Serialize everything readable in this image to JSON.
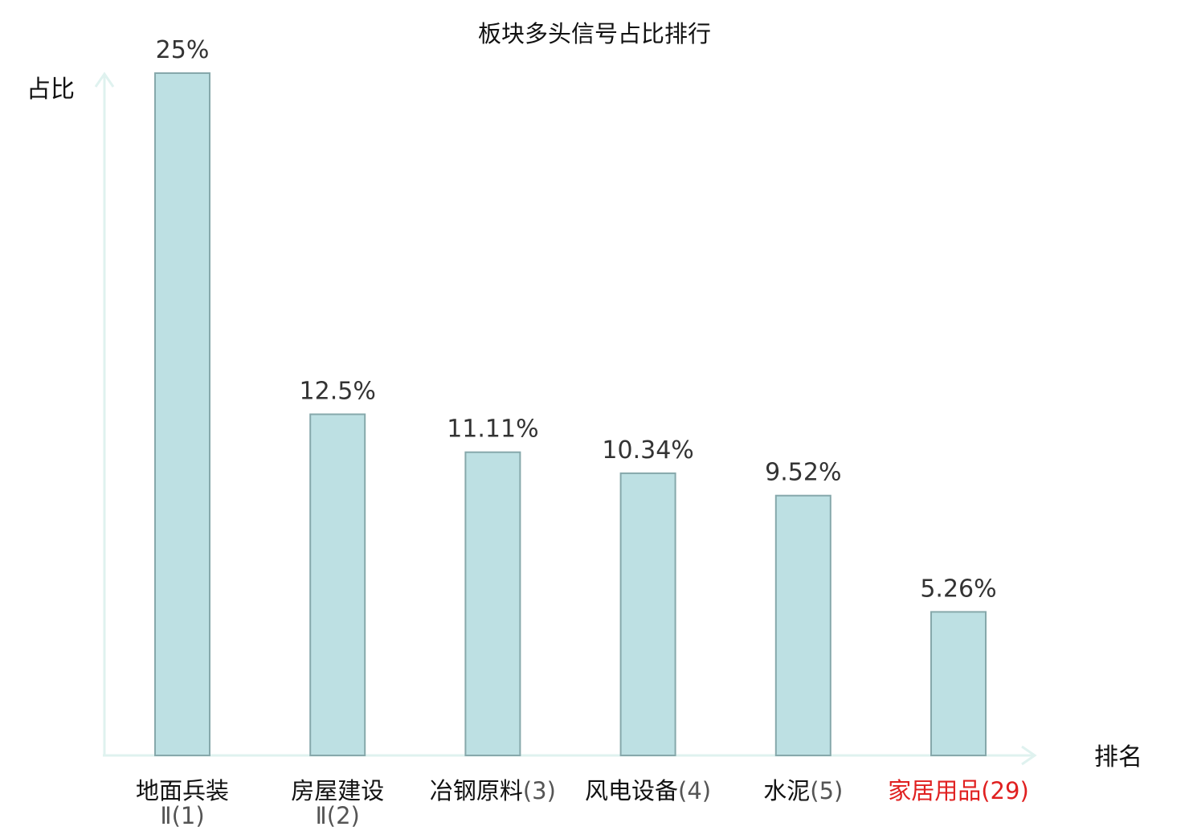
{
  "chart_data": {
    "type": "bar",
    "title": "板块多头信号占比排行",
    "ylabel": "占比",
    "xlabel": "排名",
    "ylim": [
      0,
      25
    ],
    "grid": false,
    "categories": [
      {
        "name": "地面兵装",
        "name_line2": "Ⅱ",
        "rank": "(1)",
        "highlight": false
      },
      {
        "name": "房屋建设",
        "name_line2": "Ⅱ",
        "rank": "(2)",
        "highlight": false
      },
      {
        "name": "冶钢原料",
        "name_line2": "",
        "rank": "(3)",
        "highlight": false
      },
      {
        "name": "风电设备",
        "name_line2": "",
        "rank": "(4)",
        "highlight": false
      },
      {
        "name": "水泥",
        "name_line2": "",
        "rank": "(5)",
        "highlight": false
      },
      {
        "name": "家居用品",
        "name_line2": "",
        "rank": "(29)",
        "highlight": true
      }
    ],
    "values": [
      25,
      12.5,
      11.11,
      10.34,
      9.52,
      5.26
    ],
    "value_labels": [
      "25%",
      "12.5%",
      "11.11%",
      "10.34%",
      "9.52%",
      "5.26%"
    ],
    "colors": {
      "bar_fill": "#bde0e3",
      "bar_stroke": "#86a8ab",
      "axis": "#dff2ef",
      "highlight_text": "#e02020"
    }
  }
}
